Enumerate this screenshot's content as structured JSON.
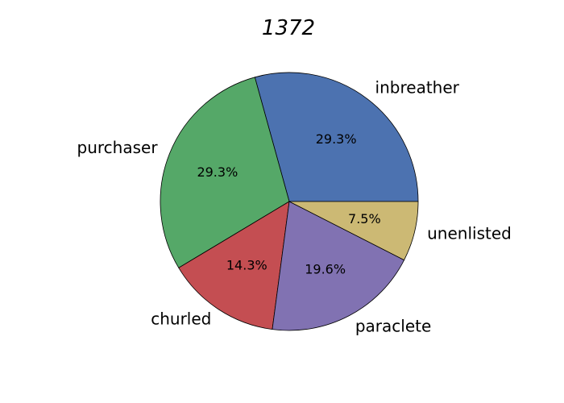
{
  "chart_data": {
    "type": "pie",
    "title": "1372",
    "start_angle_deg": 0,
    "direction": "counterclockwise",
    "slices": [
      {
        "label": "inbreather",
        "value": 29.3,
        "pct_label": "29.3%",
        "color": "#4c72b0"
      },
      {
        "label": "purchaser",
        "value": 29.3,
        "pct_label": "29.3%",
        "color": "#55a868"
      },
      {
        "label": "churled",
        "value": 14.3,
        "pct_label": "14.3%",
        "color": "#c44e52"
      },
      {
        "label": "paraclete",
        "value": 19.6,
        "pct_label": "19.6%",
        "color": "#8172b2"
      },
      {
        "label": "unenlisted",
        "value": 7.5,
        "pct_label": "7.5%",
        "color": "#ccb974"
      }
    ]
  }
}
